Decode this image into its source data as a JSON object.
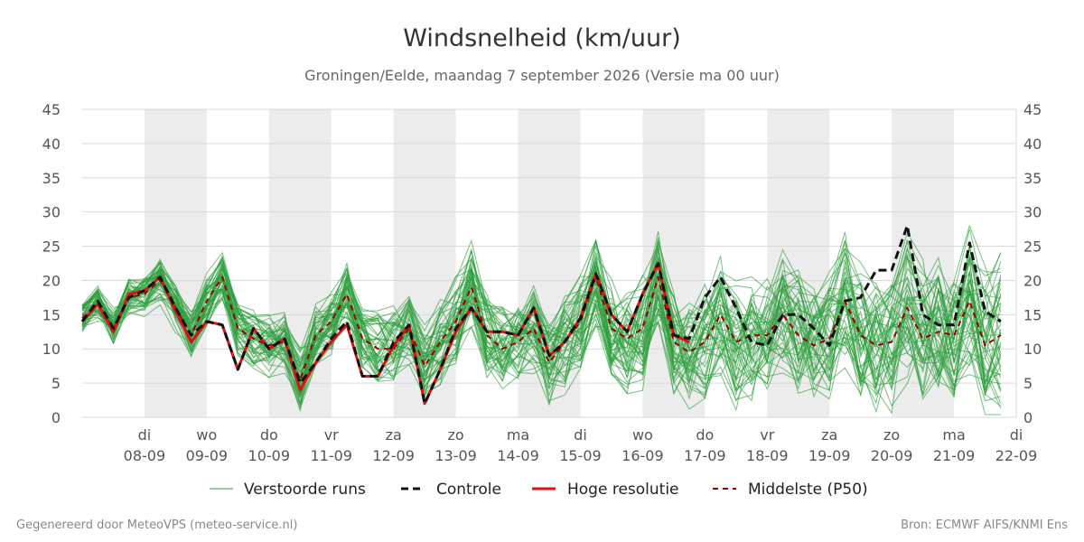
{
  "chart_data": {
    "type": "line",
    "title": "Windsnelheid (km/uur)",
    "subtitle": "Groningen/Eelde, maandag  7 september 2026 (Versie ma 00 uur)",
    "ylim": [
      0,
      45
    ],
    "yticks": [
      0,
      5,
      10,
      15,
      20,
      25,
      30,
      35,
      40,
      45
    ],
    "xlim": [
      0,
      15
    ],
    "x_step": 0.25,
    "grid": true,
    "legend_position": "bottom",
    "x_ticks": [
      {
        "day": "di",
        "date": "08-09",
        "x": 1
      },
      {
        "day": "wo",
        "date": "09-09",
        "x": 2
      },
      {
        "day": "do",
        "date": "10-09",
        "x": 3
      },
      {
        "day": "vr",
        "date": "11-09",
        "x": 4
      },
      {
        "day": "za",
        "date": "12-09",
        "x": 5
      },
      {
        "day": "zo",
        "date": "13-09",
        "x": 6
      },
      {
        "day": "ma",
        "date": "14-09",
        "x": 7
      },
      {
        "day": "di",
        "date": "15-09",
        "x": 8
      },
      {
        "day": "wo",
        "date": "16-09",
        "x": 9
      },
      {
        "day": "do",
        "date": "17-09",
        "x": 10
      },
      {
        "day": "vr",
        "date": "18-09",
        "x": 11
      },
      {
        "day": "za",
        "date": "19-09",
        "x": 12
      },
      {
        "day": "zo",
        "date": "20-09",
        "x": 13
      },
      {
        "day": "ma",
        "date": "21-09",
        "x": 14
      },
      {
        "day": "di",
        "date": "22-09",
        "x": 15
      }
    ],
    "shaded_days": [
      [
        1,
        2
      ],
      [
        3,
        4
      ],
      [
        5,
        6
      ],
      [
        7,
        8
      ],
      [
        9,
        10
      ],
      [
        11,
        12
      ],
      [
        13,
        14
      ]
    ],
    "series": [
      {
        "name": "Controle",
        "color": "#111111",
        "style": "dashed",
        "values": [
          14,
          17,
          13,
          17.5,
          18.5,
          20.5,
          16,
          12,
          14,
          13.5,
          7,
          13,
          10,
          11.5,
          5,
          8,
          11.5,
          14,
          6,
          6,
          11,
          13.5,
          2,
          7,
          13,
          16,
          12.5,
          12.5,
          12,
          16,
          9,
          11,
          14.5,
          21,
          15,
          12.5,
          18,
          22.5,
          12,
          11.5,
          17.5,
          20.5,
          16,
          11,
          10.5,
          15,
          15,
          13,
          10.5,
          17,
          17.5,
          21.5,
          21.5,
          28,
          15,
          13.5,
          13.5,
          25.5,
          15.5,
          14
        ]
      },
      {
        "name": "Hoge resolutie",
        "color": "#e01010",
        "style": "solid",
        "values": [
          14,
          16.5,
          12.5,
          18,
          18.5,
          20.5,
          15.5,
          11,
          14,
          13.5,
          7,
          13,
          10,
          11.5,
          4,
          8,
          11,
          13.5,
          6,
          6,
          10.5,
          13.5,
          2,
          7,
          12.5,
          16,
          12.5,
          12.5,
          12,
          16,
          9,
          11,
          14.5,
          21,
          15,
          12.5,
          18,
          22.5,
          12,
          11
        ]
      },
      {
        "name": "Middelste (P50)",
        "color": "#990000",
        "style": "dashed",
        "values": [
          14.5,
          16.5,
          13,
          17.5,
          18,
          20,
          16,
          12,
          17,
          20.5,
          13,
          11.5,
          10.5,
          11,
          5.5,
          12,
          14,
          18,
          11.5,
          10,
          10,
          13,
          7.5,
          11,
          14,
          19,
          12,
          10,
          11,
          13,
          8,
          11,
          14,
          20.5,
          13,
          11.5,
          13,
          20.5,
          11,
          9.5,
          11,
          15,
          11,
          12,
          12,
          15,
          12,
          10.5,
          11.5,
          17,
          12,
          10.5,
          11,
          16,
          11.5,
          12.5,
          12,
          17,
          10.5,
          12
        ]
      }
    ],
    "ensemble": {
      "name": "Verstoorde runs",
      "color": "#2e9e3e",
      "members": 50
    },
    "footer_left": "Gegenereerd door MeteoVPS (meteo-service.nl)",
    "footer_right": "Bron: ECMWF AIFS/KNMI Ens"
  }
}
